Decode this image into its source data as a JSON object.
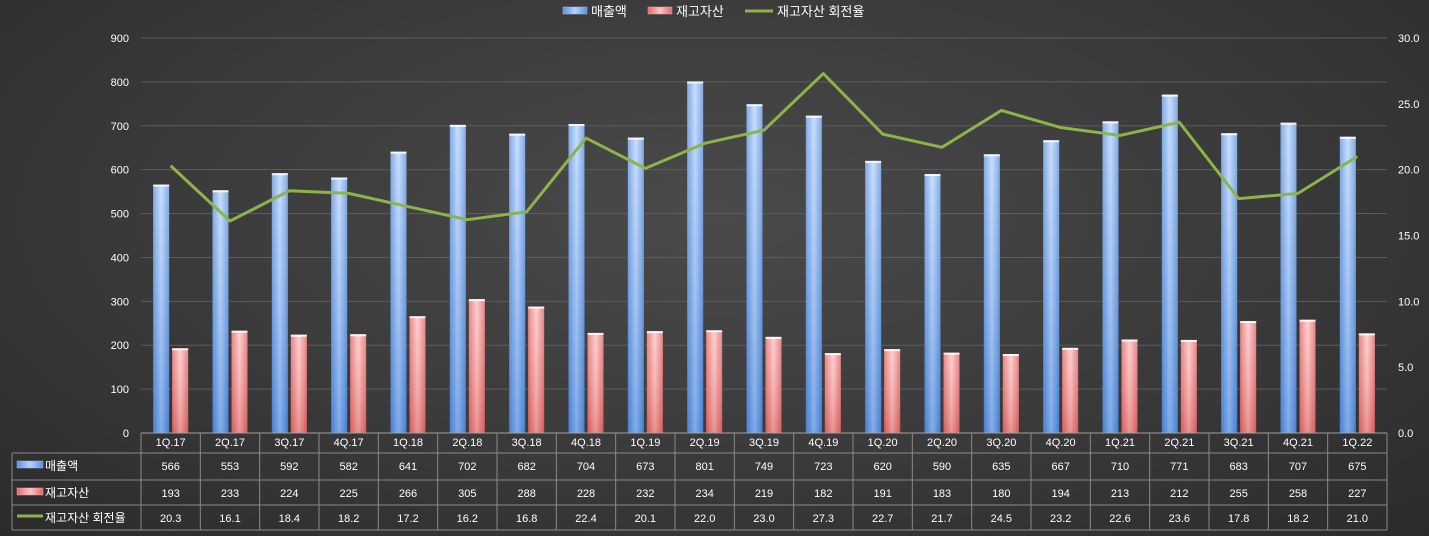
{
  "chart_data": {
    "type": "bar",
    "categories": [
      "1Q.17",
      "2Q.17",
      "3Q.17",
      "4Q.17",
      "1Q.18",
      "2Q.18",
      "3Q.18",
      "4Q.18",
      "1Q.19",
      "2Q.19",
      "3Q.19",
      "4Q.19",
      "1Q.20",
      "2Q.20",
      "3Q.20",
      "4Q.20",
      "1Q.21",
      "2Q.21",
      "3Q.21",
      "4Q.21",
      "1Q.22"
    ],
    "series": [
      {
        "name": "매출액",
        "type": "bar",
        "axis": "left",
        "color": "#6fa8f0",
        "values": [
          566,
          553,
          592,
          582,
          641,
          702,
          682,
          704,
          673,
          801,
          749,
          723,
          620,
          590,
          635,
          667,
          710,
          771,
          683,
          707,
          675
        ]
      },
      {
        "name": "재고자산",
        "type": "bar",
        "axis": "left",
        "color": "#f07a7a",
        "values": [
          193,
          233,
          224,
          225,
          266,
          305,
          288,
          228,
          232,
          234,
          219,
          182,
          191,
          183,
          180,
          194,
          213,
          212,
          255,
          258,
          227
        ]
      },
      {
        "name": "재고자산 회전율",
        "type": "line",
        "axis": "right",
        "color": "#8db34a",
        "values": [
          20.3,
          16.1,
          18.4,
          18.2,
          17.2,
          16.2,
          16.8,
          22.4,
          20.1,
          22.0,
          23.0,
          27.3,
          22.7,
          21.7,
          24.5,
          23.2,
          22.6,
          23.6,
          17.8,
          18.2,
          21.0
        ]
      }
    ],
    "y_left": {
      "min": 0,
      "max": 900,
      "step": 100,
      "ticks": [
        "0",
        "100",
        "200",
        "300",
        "400",
        "500",
        "600",
        "700",
        "800",
        "900"
      ]
    },
    "y_right": {
      "min": 0,
      "max": 30,
      "step": 5,
      "ticks": [
        "0.0",
        "5.0",
        "10.0",
        "15.0",
        "20.0",
        "25.0",
        "30.0"
      ]
    },
    "table": {
      "rows": [
        [
          "566",
          "553",
          "592",
          "582",
          "641",
          "702",
          "682",
          "704",
          "673",
          "801",
          "749",
          "723",
          "620",
          "590",
          "635",
          "667",
          "710",
          "771",
          "683",
          "707",
          "675"
        ],
        [
          "193",
          "233",
          "224",
          "225",
          "266",
          "305",
          "288",
          "228",
          "232",
          "234",
          "219",
          "182",
          "191",
          "183",
          "180",
          "194",
          "213",
          "212",
          "255",
          "258",
          "227"
        ],
        [
          "20.3",
          "16.1",
          "18.4",
          "18.2",
          "17.2",
          "16.2",
          "16.8",
          "22.4",
          "20.1",
          "22.0",
          "23.0",
          "27.3",
          "22.7",
          "21.7",
          "24.5",
          "23.2",
          "22.6",
          "23.6",
          "17.8",
          "18.2",
          "21.0"
        ]
      ]
    },
    "grid": true,
    "legend": "top-center"
  }
}
